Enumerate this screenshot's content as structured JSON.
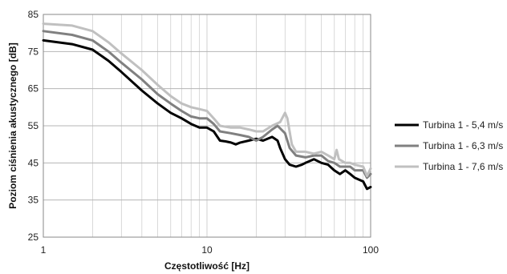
{
  "chart_data": {
    "type": "line",
    "xlabel": "Częstotliwość [Hz]",
    "ylabel": "Poziom  ciśnienia akustycznego [dB]",
    "xscale": "log",
    "xlim": [
      1,
      100
    ],
    "ylim": [
      25,
      85
    ],
    "x_ticks": [
      1,
      10,
      100
    ],
    "y_ticks": [
      25,
      35,
      45,
      55,
      65,
      75,
      85
    ],
    "grid": true,
    "legend_position": "right",
    "series": [
      {
        "name": "Turbina 1 - 5,4 m/s",
        "color": "#000000",
        "points": [
          [
            1,
            78
          ],
          [
            1.5,
            77
          ],
          [
            2,
            75.5
          ],
          [
            2.5,
            72.5
          ],
          [
            3,
            69.5
          ],
          [
            4,
            64.5
          ],
          [
            5,
            61
          ],
          [
            6,
            58.5
          ],
          [
            7,
            57
          ],
          [
            8,
            55.5
          ],
          [
            9,
            54.5
          ],
          [
            10,
            54.5
          ],
          [
            11,
            53.5
          ],
          [
            12,
            51
          ],
          [
            13,
            50.8
          ],
          [
            14,
            50.5
          ],
          [
            15,
            50
          ],
          [
            16,
            50.5
          ],
          [
            18,
            51
          ],
          [
            20,
            51.5
          ],
          [
            22,
            51
          ],
          [
            25,
            52
          ],
          [
            27,
            51
          ],
          [
            28,
            49
          ],
          [
            30,
            46
          ],
          [
            32,
            44.5
          ],
          [
            35,
            44
          ],
          [
            38,
            44.5
          ],
          [
            40,
            45
          ],
          [
            45,
            46
          ],
          [
            50,
            45
          ],
          [
            55,
            44.5
          ],
          [
            60,
            43
          ],
          [
            65,
            42
          ],
          [
            70,
            43
          ],
          [
            75,
            42
          ],
          [
            80,
            41
          ],
          [
            90,
            40
          ],
          [
            95,
            38
          ],
          [
            100,
            38.5
          ]
        ]
      },
      {
        "name": "Turbina 1 - 6,3 m/s",
        "color": "#808080",
        "points": [
          [
            1,
            80.5
          ],
          [
            1.5,
            79.5
          ],
          [
            2,
            78
          ],
          [
            2.5,
            75
          ],
          [
            3,
            72
          ],
          [
            4,
            67.5
          ],
          [
            5,
            63.5
          ],
          [
            6,
            61
          ],
          [
            7,
            59
          ],
          [
            8,
            57.5
          ],
          [
            9,
            57
          ],
          [
            10,
            57
          ],
          [
            11,
            55.5
          ],
          [
            12,
            53.5
          ],
          [
            14,
            53
          ],
          [
            16,
            52.5
          ],
          [
            18,
            52
          ],
          [
            20,
            51
          ],
          [
            22,
            52
          ],
          [
            25,
            54
          ],
          [
            27,
            55
          ],
          [
            30,
            53
          ],
          [
            32,
            49
          ],
          [
            35,
            47
          ],
          [
            40,
            46.5
          ],
          [
            45,
            47
          ],
          [
            50,
            47
          ],
          [
            55,
            45.5
          ],
          [
            60,
            45
          ],
          [
            65,
            44
          ],
          [
            70,
            44
          ],
          [
            75,
            44
          ],
          [
            80,
            43
          ],
          [
            90,
            43
          ],
          [
            95,
            41
          ],
          [
            100,
            42
          ]
        ]
      },
      {
        "name": "Turbina 1 - 7,6 m/s",
        "color": "#c0c0c0",
        "points": [
          [
            1,
            82.5
          ],
          [
            1.5,
            82
          ],
          [
            2,
            80.5
          ],
          [
            2.5,
            77.5
          ],
          [
            3,
            74.5
          ],
          [
            4,
            70
          ],
          [
            5,
            66
          ],
          [
            6,
            63
          ],
          [
            7,
            61
          ],
          [
            8,
            60
          ],
          [
            9,
            59.5
          ],
          [
            10,
            59
          ],
          [
            11,
            57
          ],
          [
            12,
            55
          ],
          [
            14,
            54.5
          ],
          [
            16,
            54.5
          ],
          [
            18,
            54
          ],
          [
            20,
            53.5
          ],
          [
            22,
            53.5
          ],
          [
            25,
            55
          ],
          [
            28,
            56
          ],
          [
            30,
            58.5
          ],
          [
            31,
            57
          ],
          [
            33,
            50
          ],
          [
            35,
            48
          ],
          [
            40,
            48
          ],
          [
            45,
            47.5
          ],
          [
            50,
            48
          ],
          [
            55,
            47
          ],
          [
            60,
            46
          ],
          [
            62,
            48.5
          ],
          [
            64,
            46
          ],
          [
            70,
            45
          ],
          [
            75,
            45
          ],
          [
            80,
            44.5
          ],
          [
            90,
            44
          ],
          [
            95,
            41.5
          ],
          [
            100,
            43.5
          ]
        ]
      }
    ]
  }
}
